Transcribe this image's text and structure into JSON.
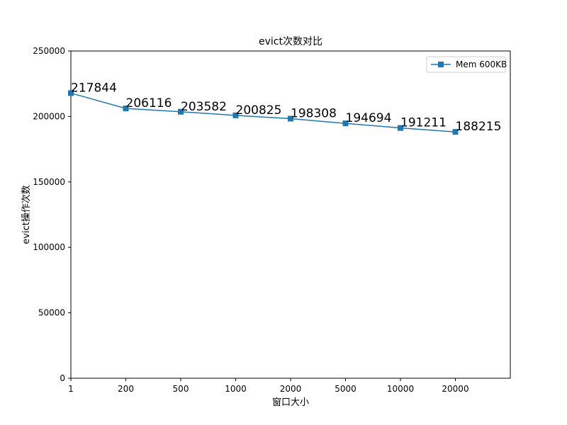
{
  "chart_data": {
    "type": "line",
    "title": "evict次数对比",
    "xlabel": "窗口大小",
    "ylabel": "evict操作次数",
    "categories": [
      "1",
      "200",
      "500",
      "1000",
      "2000",
      "5000",
      "10000",
      "20000"
    ],
    "series": [
      {
        "name": "Mem 600KB",
        "values": [
          217844,
          206116,
          203582,
          200825,
          198308,
          194694,
          191211,
          188215
        ],
        "color": "#1f77b4",
        "marker": "square"
      }
    ],
    "ylim": [
      0,
      250000
    ],
    "yticks": [
      0,
      50000,
      100000,
      150000,
      200000,
      250000
    ],
    "grid": false,
    "legend_position": "top-right",
    "data_labels": true
  }
}
